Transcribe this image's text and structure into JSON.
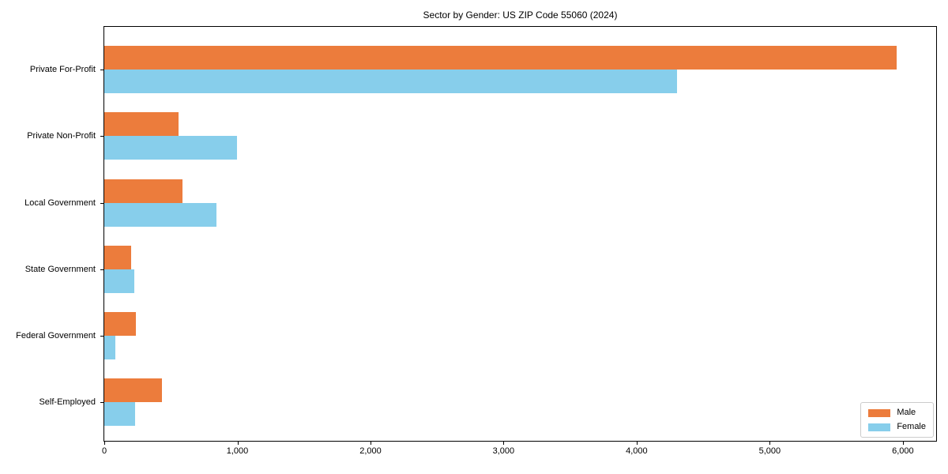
{
  "figure": {
    "title": "Sector by Gender: US ZIP Code 55060 (2024)"
  },
  "chart_data": {
    "type": "bar",
    "orientation": "horizontal",
    "title": "Sector by Gender: US ZIP Code 55060 (2024)",
    "categories": [
      "Private For-Profit",
      "Private Non-Profit",
      "Local Government",
      "State Government",
      "Federal Government",
      "Self-Employed"
    ],
    "series": [
      {
        "name": "Male",
        "color": "#EC7C3C",
        "values": [
          5950,
          555,
          585,
          200,
          235,
          435
        ]
      },
      {
        "name": "Female",
        "color": "#87CEEB",
        "values": [
          4300,
          995,
          840,
          225,
          80,
          230
        ]
      }
    ],
    "xlabel": "",
    "ylabel": "",
    "xlim": [
      0,
      6250
    ],
    "xticks": [
      0,
      1000,
      2000,
      3000,
      4000,
      5000,
      6000
    ],
    "xtick_labels": [
      "0",
      "1,000",
      "2,000",
      "3,000",
      "4,000",
      "5,000",
      "6,000"
    ],
    "grid": false,
    "legend": {
      "position": "lower right",
      "labels": [
        "Male",
        "Female"
      ]
    }
  }
}
